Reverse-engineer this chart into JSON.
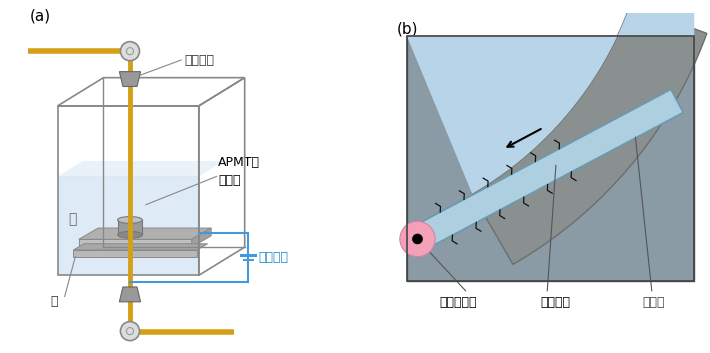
{
  "title_a": "(a)",
  "title_b": "(b)",
  "label_wire_a": "ワイヤー",
  "label_apmt": "APMTの\n試験片",
  "label_water": "水",
  "label_table": "台",
  "label_voltage": "電圧印加",
  "label_arc": "アーク放電",
  "label_wire_b": "ワイヤー",
  "label_influence": "影響層",
  "wire_color": "#D4A017",
  "box_edge_color": "#888888",
  "water_fill_color": "#C8DFF0",
  "table_color": "#AAAAAA",
  "specimen_color": "#999999",
  "voltage_line_color": "#4499DD",
  "voltage_text_color": "#2288CC",
  "bg_color": "#FFFFFF",
  "wire_b_color": "#AECFE0",
  "material_gray": "#8B9090",
  "arc_pink": "#F4A0B8",
  "panel_b_bg_gray": "#8A9BA5",
  "panel_b_fluid": "#B8D4E8",
  "spark_color": "#222222"
}
